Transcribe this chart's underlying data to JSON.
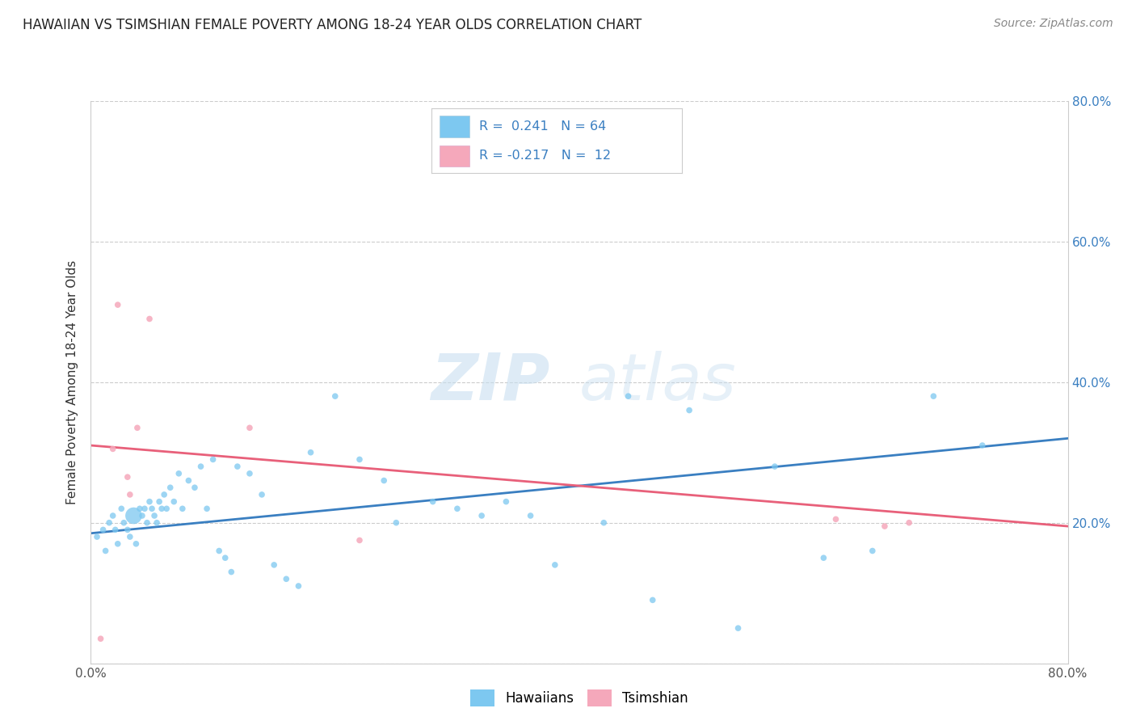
{
  "title": "HAWAIIAN VS TSIMSHIAN FEMALE POVERTY AMONG 18-24 YEAR OLDS CORRELATION CHART",
  "source": "Source: ZipAtlas.com",
  "ylabel": "Female Poverty Among 18-24 Year Olds",
  "xlim": [
    0.0,
    0.8
  ],
  "ylim": [
    0.0,
    0.8
  ],
  "xticks": [
    0.0,
    0.1,
    0.2,
    0.3,
    0.4,
    0.5,
    0.6,
    0.7,
    0.8
  ],
  "yticks": [
    0.0,
    0.2,
    0.4,
    0.6,
    0.8
  ],
  "xtick_labels": [
    "0.0%",
    "",
    "",
    "",
    "",
    "",
    "",
    "",
    "80.0%"
  ],
  "ytick_right_labels": [
    "",
    "20.0%",
    "40.0%",
    "60.0%",
    "80.0%"
  ],
  "hawaiian_color": "#7DC8F0",
  "tsimshian_color": "#F5A8BB",
  "line_blue": "#3A7FC1",
  "line_pink": "#E8607A",
  "watermark_zip": "ZIP",
  "watermark_atlas": "atlas",
  "hawaiian_x": [
    0.005,
    0.01,
    0.012,
    0.015,
    0.018,
    0.02,
    0.022,
    0.025,
    0.027,
    0.03,
    0.032,
    0.035,
    0.037,
    0.04,
    0.042,
    0.044,
    0.046,
    0.048,
    0.05,
    0.052,
    0.054,
    0.056,
    0.058,
    0.06,
    0.062,
    0.065,
    0.068,
    0.072,
    0.075,
    0.08,
    0.085,
    0.09,
    0.095,
    0.1,
    0.105,
    0.11,
    0.115,
    0.12,
    0.13,
    0.14,
    0.15,
    0.16,
    0.17,
    0.18,
    0.2,
    0.22,
    0.24,
    0.25,
    0.28,
    0.3,
    0.32,
    0.34,
    0.36,
    0.38,
    0.42,
    0.44,
    0.46,
    0.49,
    0.53,
    0.56,
    0.6,
    0.64,
    0.69,
    0.73
  ],
  "hawaiian_y": [
    0.18,
    0.19,
    0.16,
    0.2,
    0.21,
    0.19,
    0.17,
    0.22,
    0.2,
    0.19,
    0.18,
    0.21,
    0.17,
    0.22,
    0.21,
    0.22,
    0.2,
    0.23,
    0.22,
    0.21,
    0.2,
    0.23,
    0.22,
    0.24,
    0.22,
    0.25,
    0.23,
    0.27,
    0.22,
    0.26,
    0.25,
    0.28,
    0.22,
    0.29,
    0.16,
    0.15,
    0.13,
    0.28,
    0.27,
    0.24,
    0.14,
    0.12,
    0.11,
    0.3,
    0.38,
    0.29,
    0.26,
    0.2,
    0.23,
    0.22,
    0.21,
    0.23,
    0.21,
    0.14,
    0.2,
    0.38,
    0.09,
    0.36,
    0.05,
    0.28,
    0.15,
    0.16,
    0.38,
    0.31
  ],
  "hawaiian_size": [
    30,
    30,
    30,
    30,
    30,
    30,
    30,
    30,
    30,
    30,
    30,
    220,
    30,
    30,
    30,
    30,
    30,
    30,
    30,
    30,
    30,
    30,
    30,
    30,
    30,
    30,
    30,
    30,
    30,
    30,
    30,
    30,
    30,
    30,
    30,
    30,
    30,
    30,
    30,
    30,
    30,
    30,
    30,
    30,
    30,
    30,
    30,
    30,
    30,
    30,
    30,
    30,
    30,
    30,
    30,
    30,
    30,
    30,
    30,
    30,
    30,
    30,
    30,
    30
  ],
  "tsimshian_x": [
    0.008,
    0.018,
    0.022,
    0.03,
    0.032,
    0.038,
    0.048,
    0.13,
    0.22,
    0.61,
    0.65,
    0.67
  ],
  "tsimshian_y": [
    0.035,
    0.305,
    0.51,
    0.265,
    0.24,
    0.335,
    0.49,
    0.335,
    0.175,
    0.205,
    0.195,
    0.2
  ],
  "tsimshian_size": [
    30,
    30,
    30,
    30,
    30,
    30,
    30,
    30,
    30,
    30,
    30,
    30
  ],
  "blue_trend_x0": 0.0,
  "blue_trend_x1": 0.8,
  "blue_trend_y0": 0.185,
  "blue_trend_y1": 0.32,
  "pink_trend_x0": 0.0,
  "pink_trend_x1": 0.8,
  "pink_trend_y0": 0.31,
  "pink_trend_y1": 0.195
}
